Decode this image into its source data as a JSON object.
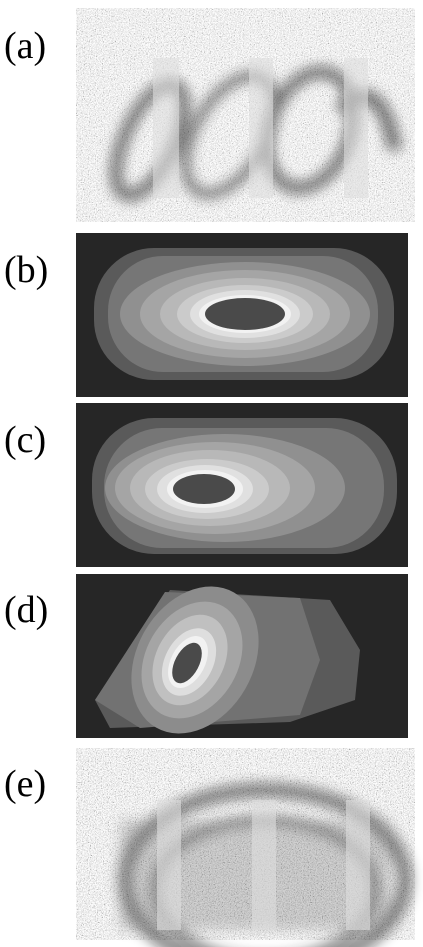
{
  "panels": [
    {
      "label": "(a)"
    },
    {
      "label": "(b)"
    },
    {
      "label": "(c)"
    },
    {
      "label": "(d)"
    },
    {
      "label": "(e)"
    }
  ]
}
